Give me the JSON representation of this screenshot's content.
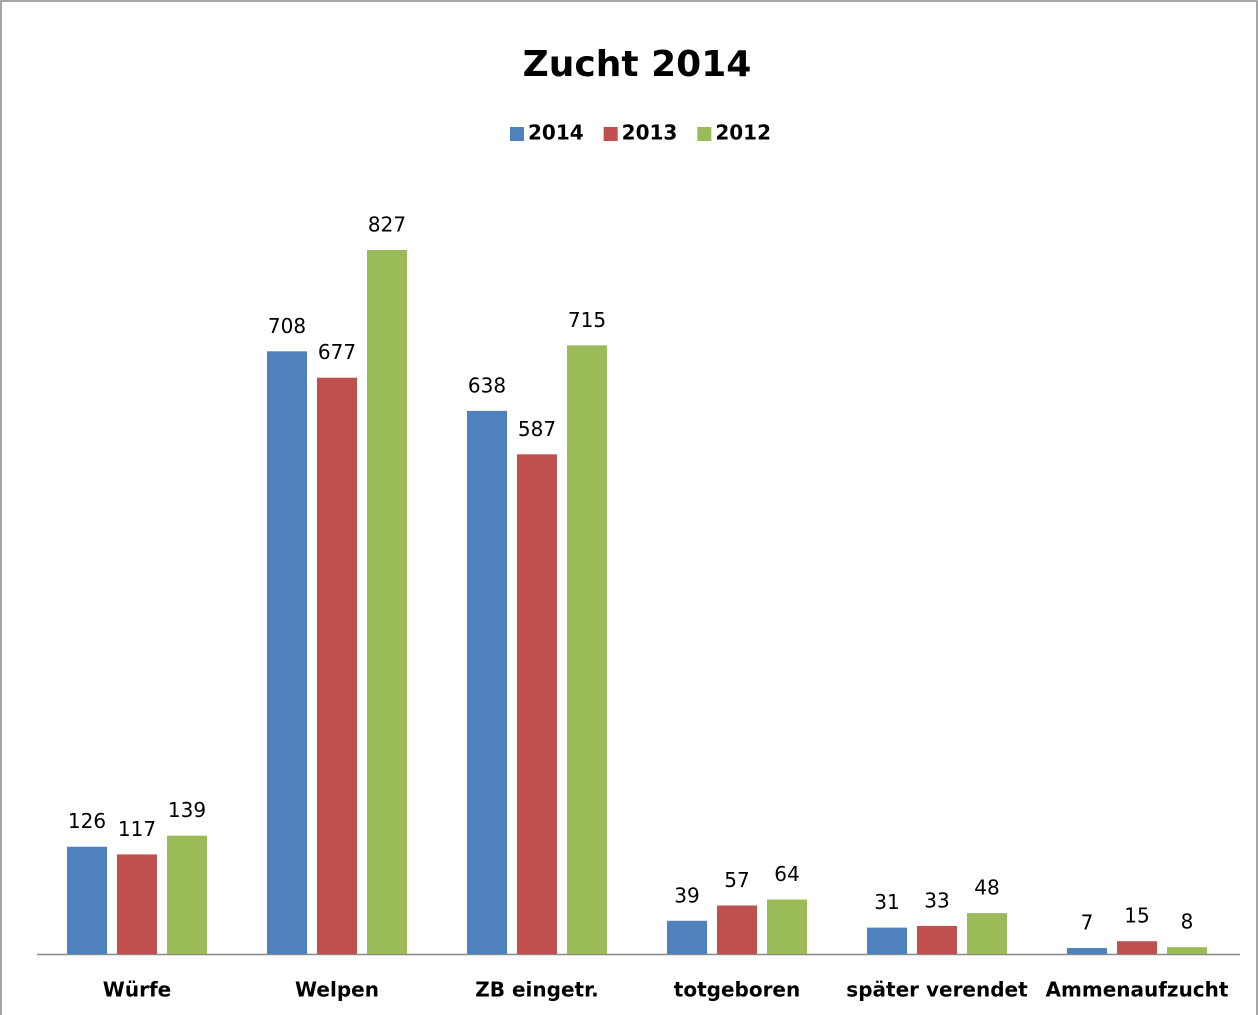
{
  "chart_data": {
    "type": "bar",
    "title": "Zucht 2014",
    "categories": [
      "Würfe",
      "Welpen",
      "ZB eingetr.",
      "totgeboren",
      "später verendet",
      "Ammenaufzucht"
    ],
    "series": [
      {
        "name": "2014",
        "color": "#4f81bd",
        "values": [
          126,
          708,
          638,
          39,
          31,
          7
        ]
      },
      {
        "name": "2013",
        "color": "#c0504d",
        "values": [
          117,
          677,
          587,
          57,
          33,
          15
        ]
      },
      {
        "name": "2012",
        "color": "#9bbb59",
        "values": [
          139,
          827,
          715,
          64,
          48,
          8
        ]
      }
    ],
    "legend": "top"
  }
}
